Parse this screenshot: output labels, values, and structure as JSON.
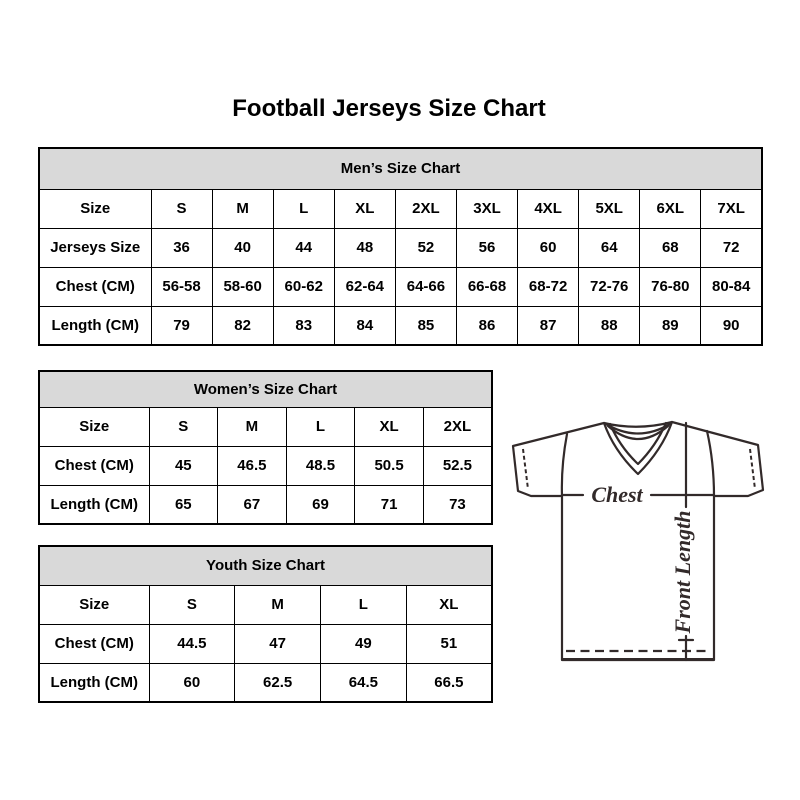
{
  "page": {
    "title": "Football Jerseys Size Chart"
  },
  "colors": {
    "background": "#ffffff",
    "table_header_bg": "#d9d9d9",
    "table_border": "#000000",
    "text": "#000000",
    "jersey_line": "#322a2a"
  },
  "tables": {
    "men": {
      "header": "Men’s Size Chart",
      "rows": [
        [
          "Size",
          "S",
          "M",
          "L",
          "XL",
          "2XL",
          "3XL",
          "4XL",
          "5XL",
          "6XL",
          "7XL"
        ],
        [
          "Jerseys Size",
          "36",
          "40",
          "44",
          "48",
          "52",
          "56",
          "60",
          "64",
          "68",
          "72"
        ],
        [
          "Chest (CM)",
          "56-58",
          "58-60",
          "60-62",
          "62-64",
          "64-66",
          "66-68",
          "68-72",
          "72-76",
          "76-80",
          "80-84"
        ],
        [
          "Length (CM)",
          "79",
          "82",
          "83",
          "84",
          "85",
          "86",
          "87",
          "88",
          "89",
          "90"
        ]
      ]
    },
    "women": {
      "header": "Women’s Size Chart",
      "rows": [
        [
          "Size",
          "S",
          "M",
          "L",
          "XL",
          "2XL"
        ],
        [
          "Chest (CM)",
          "45",
          "46.5",
          "48.5",
          "50.5",
          "52.5"
        ],
        [
          "Length (CM)",
          "65",
          "67",
          "69",
          "71",
          "73"
        ]
      ]
    },
    "youth": {
      "header": "Youth Size Chart",
      "rows": [
        [
          "Size",
          "S",
          "M",
          "L",
          "XL"
        ],
        [
          "Chest (CM)",
          "44.5",
          "47",
          "49",
          "51"
        ],
        [
          "Length (CM)",
          "60",
          "62.5",
          "64.5",
          "66.5"
        ]
      ]
    }
  },
  "jersey": {
    "chest_label": "Chest",
    "front_length_label": "Front Length"
  }
}
